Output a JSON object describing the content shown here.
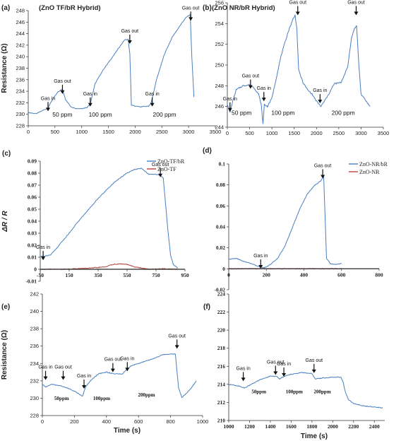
{
  "chart_data": [
    {
      "id": "a",
      "panel_label": "(a)",
      "title": "(ZnO TF/bR Hybrid)",
      "type": "line",
      "ylabel": "Resistance (Ω)",
      "xlabel": "",
      "xlim": [
        0,
        3500
      ],
      "ylim": [
        228,
        248
      ],
      "xticks": [
        0,
        500,
        1000,
        1500,
        2000,
        2500,
        3000,
        3500
      ],
      "yticks": [
        228,
        230,
        232,
        234,
        236,
        238,
        240,
        242,
        244,
        246,
        248
      ],
      "series": [
        {
          "color": "#4a7fc1",
          "x": [
            0,
            150,
            300,
            360,
            450,
            550,
            640,
            700,
            800,
            900,
            1000,
            1100,
            1160,
            1250,
            1400,
            1550,
            1700,
            1800,
            1870,
            1900,
            1930,
            2000,
            2100,
            2250,
            2300,
            2400,
            2550,
            2700,
            2850,
            2950,
            3030,
            3060,
            3100
          ],
          "y": [
            230.3,
            230.1,
            230.8,
            231.0,
            232.5,
            233.8,
            234.4,
            232.5,
            231.3,
            231.0,
            231.0,
            231.2,
            231.8,
            235.3,
            237.7,
            239.6,
            241.6,
            242.9,
            243.0,
            240.5,
            231.6,
            231.4,
            231.3,
            231.4,
            232.0,
            236.0,
            240.5,
            243.5,
            245.5,
            246.8,
            247.3,
            240.0,
            233.0
          ]
        }
      ],
      "annotations": [
        {
          "text": "Gas in",
          "x": 370,
          "y": 232.5
        },
        {
          "text": "Gas out",
          "x": 640,
          "y": 235.5
        },
        {
          "text": "Gas in",
          "x": 1160,
          "y": 233.3
        },
        {
          "text": "Gas out",
          "x": 1900,
          "y": 244.2
        },
        {
          "text": "Gas in",
          "x": 2320,
          "y": 233.3
        },
        {
          "text": "Gas out",
          "x": 3040,
          "y": 248.2
        },
        {
          "text": "50 ppm",
          "x": 640,
          "y": 229.6
        },
        {
          "text": "100 ppm",
          "x": 1350,
          "y": 229.6
        },
        {
          "text": "200 ppm",
          "x": 2550,
          "y": 229.6
        }
      ]
    },
    {
      "id": "b",
      "panel_label": "(b)",
      "title": "(ZnO NR/bR Hybrid)",
      "type": "line",
      "ylabel": "",
      "xlabel": "",
      "xlim": [
        0,
        3500
      ],
      "ylim": [
        244,
        256
      ],
      "xticks": [
        0,
        500,
        1000,
        1500,
        2000,
        2500,
        3000,
        3500
      ],
      "yticks": [
        244,
        246,
        248,
        250,
        252,
        254,
        256
      ],
      "series": [
        {
          "color": "#4a7fc1",
          "x": [
            0,
            60,
            120,
            200,
            350,
            500,
            600,
            700,
            760,
            800,
            830,
            900,
            1000,
            1100,
            1200,
            1350,
            1450,
            1520,
            1560,
            1600,
            1700,
            1800,
            1900,
            2000,
            2100,
            2250,
            2400,
            2550,
            2700,
            2780,
            2850,
            2900,
            2950,
            3000,
            3100,
            3200
          ],
          "y": [
            246.3,
            245.4,
            246.5,
            247.6,
            248.0,
            248.1,
            247.8,
            247.2,
            246.2,
            244.3,
            246.2,
            246.0,
            246.8,
            248.8,
            250.8,
            253.0,
            254.2,
            254.8,
            253.5,
            249.5,
            248.3,
            247.6,
            247.2,
            246.5,
            246.0,
            247.0,
            248.2,
            248.3,
            249.8,
            252.5,
            253.5,
            253.8,
            250.0,
            247.2,
            246.6,
            246.0
          ],
          "note": "noisy"
        }
      ],
      "annotations": [
        {
          "text": "Gas in",
          "x": 60,
          "y": 246.6
        },
        {
          "text": "Gas out",
          "x": 520,
          "y": 248.8
        },
        {
          "text": "Gas in",
          "x": 820,
          "y": 247.6
        },
        {
          "text": "Gas out",
          "x": 1580,
          "y": 255.9
        },
        {
          "text": "Gas in",
          "x": 2080,
          "y": 247.4
        },
        {
          "text": "Gas out",
          "x": 2890,
          "y": 255.9
        },
        {
          "text": "50 ppm",
          "x": 320,
          "y": 245.2
        },
        {
          "text": "100 ppm",
          "x": 1250,
          "y": 245.2
        },
        {
          "text": "200 ppm",
          "x": 2600,
          "y": 245.2
        }
      ]
    },
    {
      "id": "c",
      "panel_label": "(c)",
      "title": "",
      "type": "line",
      "ylabel": "ΔR / R",
      "xlabel": "",
      "xlim": [
        -50,
        950
      ],
      "ylim": [
        -0.01,
        0.09
      ],
      "xticks": [
        -50,
        150,
        350,
        550,
        750,
        950
      ],
      "xticklabels": [
        "-50",
        "150",
        "350",
        "550",
        "750",
        "950"
      ],
      "yticks": [
        -0.01,
        0,
        0.01,
        0.02,
        0.03,
        0.04,
        0.05,
        0.06,
        0.07,
        0.08,
        0.09
      ],
      "yticklabels": [
        "-0.01",
        "0",
        "0.01",
        "0.02",
        "0.03",
        "0.04",
        "0.05",
        "0.06",
        "0.07",
        "0.08",
        "0.09"
      ],
      "series": [
        {
          "name": "ZnO-TF/bR",
          "color": "#4a7fc1",
          "x": [
            -50,
            -20,
            20,
            60,
            100,
            150,
            200,
            250,
            300,
            350,
            400,
            450,
            500,
            550,
            600,
            650,
            700,
            750,
            780,
            800,
            830,
            850,
            870,
            900
          ],
          "y": [
            0.0105,
            0.011,
            0.012,
            0.017,
            0.023,
            0.03,
            0.038,
            0.045,
            0.052,
            0.059,
            0.065,
            0.071,
            0.076,
            0.08,
            0.083,
            0.084,
            0.079,
            0.079,
            0.078,
            0.076,
            0.035,
            0.012,
            0.004,
            0.001
          ]
        },
        {
          "name": "ZnO-TF",
          "color": "#b8403a",
          "x": [
            -50,
            100,
            200,
            300,
            400,
            450,
            500,
            550,
            600,
            650,
            700,
            800,
            900
          ],
          "y": [
            0.0,
            0.0,
            0.0005,
            0.001,
            0.002,
            0.004,
            0.0045,
            0.004,
            0.002,
            0.001,
            0.0,
            0.0005,
            0.0
          ]
        },
        {
          "name": "",
          "color": "#111111",
          "x": [
            -50,
            950
          ],
          "y": [
            0,
            0
          ]
        }
      ],
      "annotations": [
        {
          "text": "Gas in",
          "x": -30,
          "y": 0.017
        },
        {
          "text": "Gas out",
          "x": 780,
          "y": 0.086
        }
      ]
    },
    {
      "id": "d",
      "panel_label": "(d)",
      "title": "",
      "type": "line",
      "ylabel": "",
      "xlabel": "",
      "xlim": [
        0,
        800
      ],
      "ylim": [
        -0.02,
        0.1
      ],
      "xticks": [
        0,
        200,
        400,
        600,
        800
      ],
      "yticks": [
        -0.02,
        0,
        0.02,
        0.04,
        0.06,
        0.08,
        0.1
      ],
      "yticklabels": [
        "-0.02",
        "0",
        "0.02",
        "0.04",
        "0.06",
        "0.08",
        "0.1"
      ],
      "series": [
        {
          "name": "ZnO-NR/bR",
          "color": "#4a7fc1",
          "x": [
            0,
            40,
            80,
            120,
            160,
            190,
            220,
            260,
            300,
            340,
            380,
            420,
            460,
            490,
            505,
            520,
            540,
            560,
            600
          ],
          "y": [
            0.009,
            0.01,
            0.007,
            0.005,
            0.002,
            0.001,
            0.004,
            0.01,
            0.022,
            0.04,
            0.058,
            0.072,
            0.08,
            0.084,
            0.088,
            0.01,
            0.005,
            0.004,
            0.005
          ]
        },
        {
          "name": "ZnO-NR",
          "color": "#b8403a",
          "x": [
            0,
            200,
            400,
            600
          ],
          "y": [
            0.0,
            0.0,
            0.0,
            0.0
          ]
        },
        {
          "name": "",
          "color": "#111111",
          "x": [
            0,
            800
          ],
          "y": [
            0,
            0
          ]
        }
      ],
      "annotations": [
        {
          "text": "Gas in",
          "x": 170,
          "y": 0.011
        },
        {
          "text": "Gas out",
          "x": 500,
          "y": 0.097
        }
      ]
    },
    {
      "id": "e",
      "panel_label": "(e)",
      "title": "",
      "type": "line",
      "ylabel": "Resistance (Ω)",
      "xlabel": "Time (s)",
      "xlim": [
        0,
        1000
      ],
      "ylim": [
        228,
        242
      ],
      "xticks": [
        0,
        200,
        400,
        600,
        800,
        1000
      ],
      "yticks": [
        228,
        230,
        232,
        234,
        236,
        238,
        240,
        242
      ],
      "series": [
        {
          "color": "#4a7fc1",
          "x": [
            0,
            20,
            60,
            120,
            180,
            220,
            250,
            270,
            300,
            350,
            400,
            450,
            500,
            550,
            600,
            650,
            700,
            750,
            800,
            830,
            850,
            870,
            900,
            930,
            960
          ],
          "y": [
            231.6,
            231.3,
            231.6,
            231.4,
            231.0,
            230.6,
            230.2,
            231.3,
            232.0,
            232.8,
            233.0,
            232.8,
            232.8,
            233.7,
            234.0,
            234.3,
            234.6,
            235.0,
            235.1,
            235.1,
            231.2,
            230.1,
            230.6,
            231.2,
            232.0
          ]
        }
      ],
      "annotations": [
        {
          "text": "Gas in",
          "x": 20,
          "y": 233.4
        },
        {
          "text": "Gas out",
          "x": 130,
          "y": 233.4
        },
        {
          "text": "Gas in",
          "x": 260,
          "y": 232.4
        },
        {
          "text": "Gas out",
          "x": 440,
          "y": 234.3
        },
        {
          "text": "Gas in",
          "x": 530,
          "y": 234.4
        },
        {
          "text": "Gas out",
          "x": 840,
          "y": 237.0
        },
        {
          "text": "50ppm",
          "x": 120,
          "y": 229.8
        },
        {
          "text": "100ppm",
          "x": 370,
          "y": 229.8
        },
        {
          "text": "200ppm",
          "x": 650,
          "y": 230.2
        }
      ]
    },
    {
      "id": "f",
      "panel_label": "(f)",
      "title": "",
      "type": "line",
      "ylabel": "",
      "xlabel": "Time (s)",
      "xlim": [
        1000,
        2500
      ],
      "ylim": [
        210,
        224
      ],
      "xticks": [
        1000,
        1200,
        1400,
        1600,
        1800,
        2000,
        2200,
        2400
      ],
      "yticks": [
        210,
        212,
        214,
        216,
        218,
        220,
        222,
        224
      ],
      "series": [
        {
          "color": "#4a7fc1",
          "x": [
            1000,
            1100,
            1150,
            1200,
            1300,
            1400,
            1460,
            1490,
            1520,
            1560,
            1600,
            1700,
            1800,
            1830,
            1900,
            2000,
            2080,
            2100,
            2120,
            2150,
            2200,
            2300,
            2400,
            2480
          ],
          "y": [
            214.0,
            213.8,
            213.6,
            213.9,
            214.5,
            214.9,
            214.9,
            214.6,
            214.8,
            215.0,
            215.1,
            215.3,
            215.2,
            214.6,
            214.7,
            214.8,
            214.8,
            214.2,
            213.2,
            212.3,
            211.9,
            211.6,
            211.5,
            211.4
          ]
        }
      ],
      "annotations": [
        {
          "text": "Gas in",
          "x": 1140,
          "y": 215.6
        },
        {
          "text": "Gas out",
          "x": 1450,
          "y": 216.3
        },
        {
          "text": "Gas in",
          "x": 1530,
          "y": 216.1
        },
        {
          "text": "Gas out",
          "x": 1820,
          "y": 216.5
        },
        {
          "text": "50ppm",
          "x": 1290,
          "y": 213.0
        },
        {
          "text": "100ppm",
          "x": 1630,
          "y": 213.0
        },
        {
          "text": "200ppm",
          "x": 1900,
          "y": 213.0
        }
      ]
    }
  ]
}
